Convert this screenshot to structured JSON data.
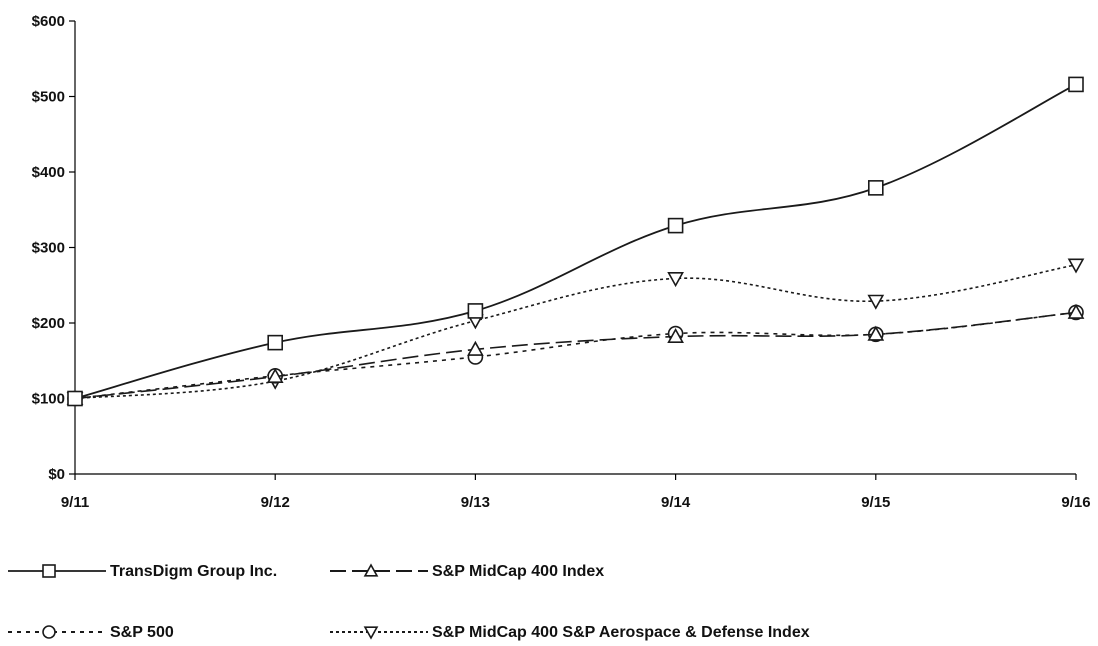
{
  "chart_data": {
    "type": "line",
    "title": "",
    "xlabel": "",
    "ylabel": "",
    "categories": [
      "9/11",
      "9/12",
      "9/13",
      "9/14",
      "9/15",
      "9/16"
    ],
    "ylim": [
      0,
      600
    ],
    "y_ticks": [
      0,
      100,
      200,
      300,
      400,
      500,
      600
    ],
    "y_tick_labels": [
      "$0",
      "$100",
      "$200",
      "$300",
      "$400",
      "$500",
      "$600"
    ],
    "grid": false,
    "legend_position": "bottom",
    "series": [
      {
        "name": "TransDigm Group Inc.",
        "values": [
          100,
          174,
          216,
          329,
          379,
          516
        ],
        "line_style": "solid",
        "marker": "square",
        "color": "#1a1a1a"
      },
      {
        "name": "S&P MidCap 400 Index",
        "values": [
          100,
          129,
          165,
          182,
          185,
          214
        ],
        "line_style": "dashed",
        "marker": "triangle-up",
        "color": "#1a1a1a"
      },
      {
        "name": "S&P 500",
        "values": [
          100,
          130,
          155,
          186,
          185,
          214
        ],
        "line_style": "dash-dot",
        "marker": "circle",
        "color": "#1a1a1a"
      },
      {
        "name": "S&P MidCap 400 S&P Aerospace & Defense Index",
        "values": [
          100,
          123,
          203,
          259,
          229,
          277
        ],
        "line_style": "dotted",
        "marker": "triangle-down",
        "color": "#1a1a1a"
      }
    ]
  }
}
